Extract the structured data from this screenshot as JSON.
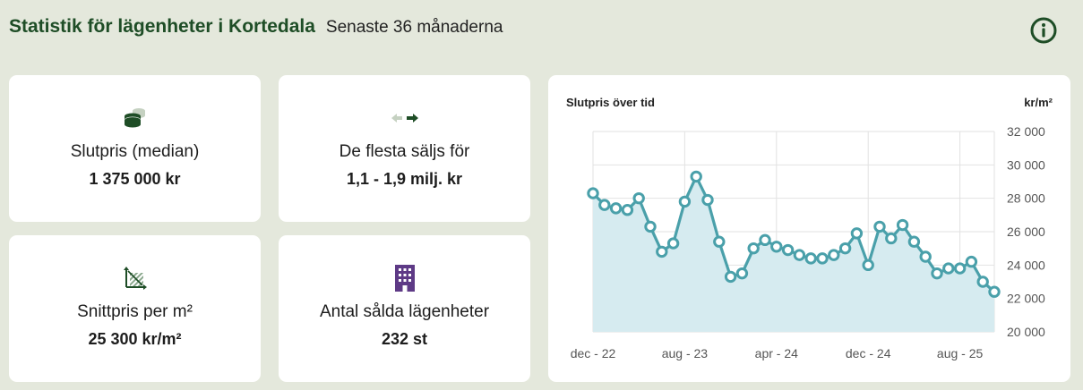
{
  "header": {
    "title": "Statistik för lägenheter i Kortedala",
    "subtitle": "Senaste 36 månaderna",
    "info_icon": "info-circle-icon"
  },
  "colors": {
    "background": "#e4e8dc",
    "brand_green": "#1e4d26",
    "chart_line": "#4aa0aa",
    "chart_fill": "#d6ebf0",
    "building_purple": "#5e3a86"
  },
  "cards": [
    {
      "icon": "coins-icon",
      "label": "Slutpris (median)",
      "value": "1 375 000 kr"
    },
    {
      "icon": "arrows-exchange-icon",
      "label": "De flesta säljs för",
      "value": "1,1 - 1,9 milj. kr"
    },
    {
      "icon": "area-square-icon",
      "label": "Snittpris per m²",
      "value": "25 300 kr/m²"
    },
    {
      "icon": "building-icon",
      "label": "Antal sålda lägenheter",
      "value": "232 st"
    }
  ],
  "chart": {
    "title": "Slutpris över tid",
    "unit": "kr/m²"
  },
  "chart_data": {
    "type": "area",
    "title": "Slutpris över tid",
    "ylabel": "kr/m²",
    "xlabel": "",
    "ylim": [
      20000,
      32000
    ],
    "y_ticks": [
      20000,
      22000,
      24000,
      26000,
      28000,
      30000,
      32000
    ],
    "y_tick_labels": [
      "20 000",
      "22 000",
      "24 000",
      "26 000",
      "28 000",
      "30 000",
      "32 000"
    ],
    "x_tick_labels": [
      "dec - 22",
      "aug - 23",
      "apr - 24",
      "dec - 24",
      "aug - 25"
    ],
    "x_tick_indices": [
      0,
      8,
      16,
      24,
      32
    ],
    "grid": true,
    "series": [
      {
        "values": [
          28300,
          27600,
          27400,
          27300,
          28000,
          26300,
          24800,
          25300,
          27800,
          29300,
          27900,
          25400,
          23300,
          23500,
          25000,
          25500,
          25100,
          24900,
          24600,
          24400,
          24400,
          24600,
          25000,
          25900,
          24000,
          26300,
          25600,
          26400,
          25400,
          24500,
          23500,
          23800,
          23800,
          24200,
          23000,
          22400
        ]
      }
    ]
  }
}
